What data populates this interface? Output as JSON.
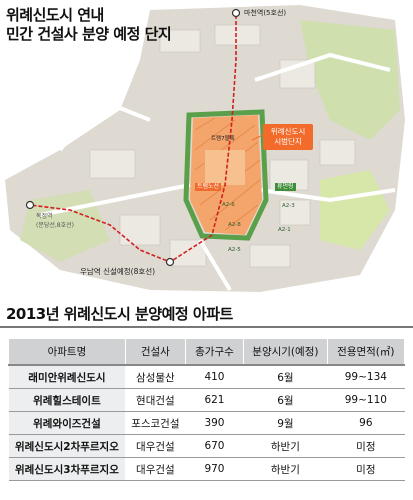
{
  "map": {
    "title_line1": "위례신도시 연내",
    "title_line2": "민간 건설사 분양 예정 단지",
    "labels": {
      "macheon_station": "마천역(5호선)",
      "callout_line1": "위례신도시",
      "callout_line2": "시범단지",
      "trade_zone": "트램노선",
      "green_block": "트램7블록",
      "park": "휴먼링",
      "moran_station_1": "복정역",
      "moran_station_2": "(분당선,8호선)",
      "unam_station": "우남역 신설예정(8호선)",
      "block_a1": "A2-6",
      "block_a2": "A2-3",
      "block_a3": "A2-5",
      "block_a4": "A2-1",
      "block_a5": "A2-8"
    },
    "colors": {
      "development_zone": "#f4a56b",
      "boundary": "#5aa04a",
      "rail_line": "#d22020",
      "road": "#ffffff",
      "terrain": "#d9d4cc",
      "green_space": "#b7d98a",
      "callout": "#f26b2b"
    },
    "icons": {
      "station": "station-marker-icon"
    }
  },
  "table": {
    "title": "2013년 위례신도시 분양예정 아파트",
    "headers": [
      "아파트명",
      "건설사",
      "총가구수",
      "분양시기(예정)",
      "전용면적(㎡)"
    ],
    "rows": [
      [
        "래미안위례신도시",
        "삼성물산",
        "410",
        "6월",
        "99~134"
      ],
      [
        "위례힐스테이트",
        "현대건설",
        "621",
        "6월",
        "99~110"
      ],
      [
        "위례와이즈건설",
        "포스코건설",
        "390",
        "9월",
        "96"
      ],
      [
        "위례신도시2차푸르지오",
        "대우건설",
        "670",
        "하반기",
        "미정"
      ],
      [
        "위례신도시3차푸르지오",
        "대우건설",
        "970",
        "하반기",
        "미정"
      ]
    ]
  }
}
